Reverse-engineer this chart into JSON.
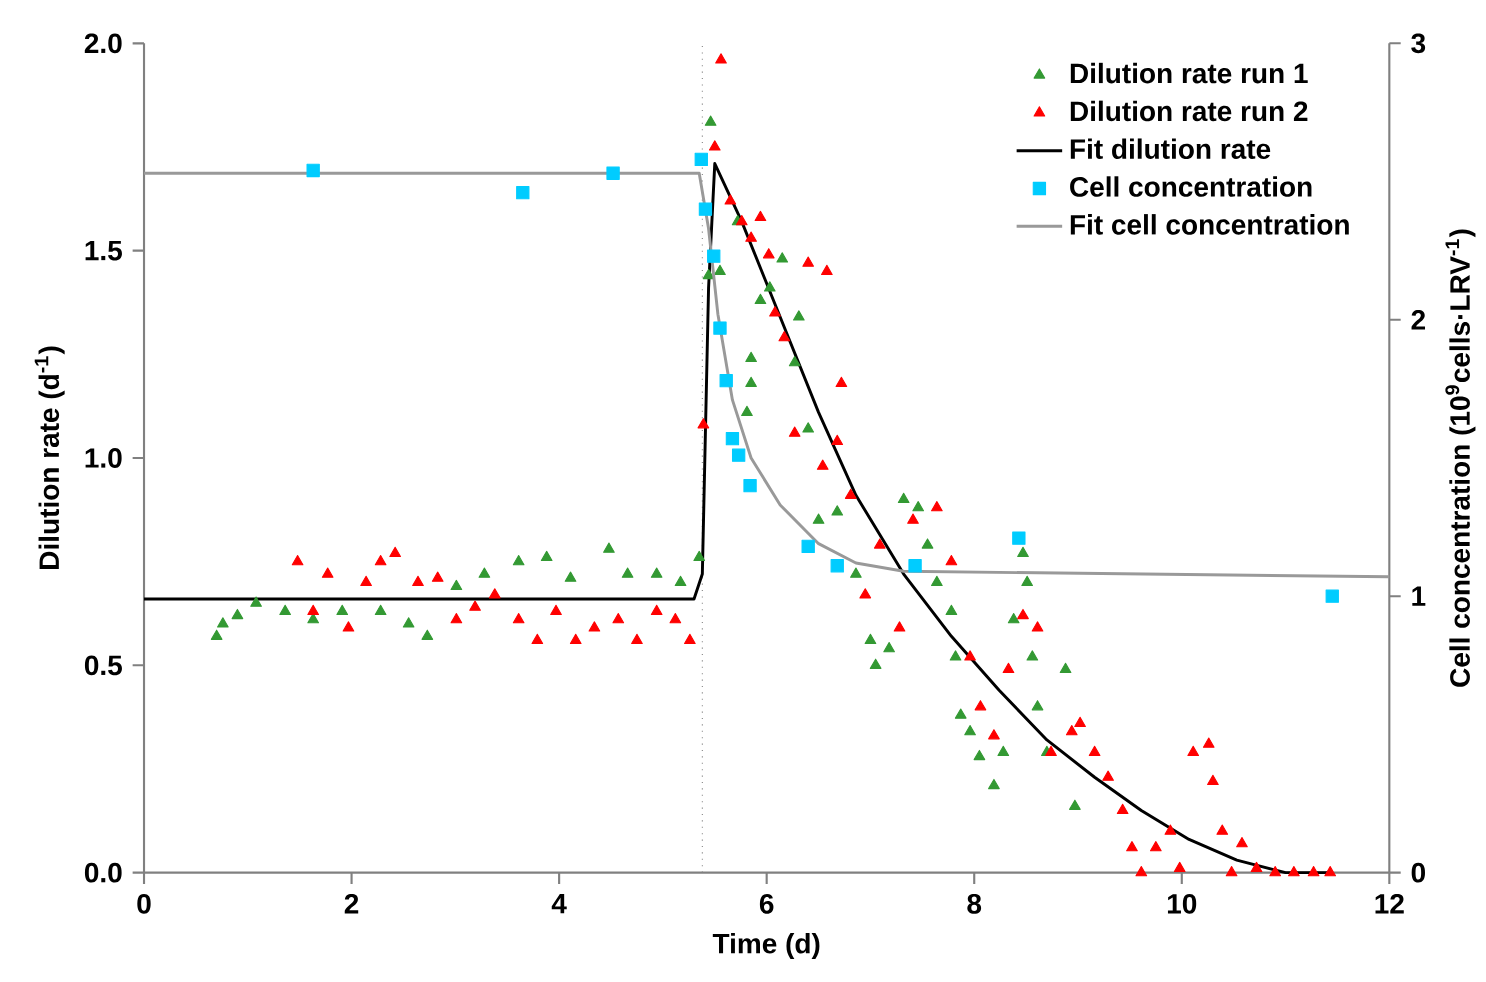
{
  "chart_data": {
    "type": "scatter",
    "xlabel": "Time (d)",
    "ylabel": "Dilution rate (d$^{-1}$)",
    "y2label": "Cell concentration (10$^{9}$cells·LRV$^{-1}$)",
    "xlim": [
      0,
      12
    ],
    "xticks": [
      0,
      2,
      4,
      6,
      8,
      10,
      12
    ],
    "ylim": [
      0,
      2.0
    ],
    "yticks": [
      {
        "value": 0,
        "label": "0.0"
      },
      {
        "value": 0.5,
        "label": "0.5"
      },
      {
        "value": 1.0,
        "label": "1.0"
      },
      {
        "value": 1.5,
        "label": "1.5"
      },
      {
        "value": 2.0,
        "label": "2.0"
      }
    ],
    "y2lim": [
      0,
      3
    ],
    "y2ticks": [
      0,
      1,
      2,
      3
    ],
    "legend": "top right",
    "grid": false,
    "ref_lines": [
      {
        "axis": "x",
        "value": 5.38,
        "label": null,
        "color": "#808080",
        "line_style": "dotted"
      }
    ],
    "series": [
      {
        "name": "Dilution rate run 1",
        "marker": "triangle",
        "color": "#339933",
        "x": [
          0.7,
          0.76,
          0.9,
          1.08,
          1.36,
          1.63,
          1.91,
          2.28,
          2.55,
          2.73,
          3.01,
          3.28,
          3.61,
          3.88,
          4.11,
          4.48,
          4.66,
          4.94,
          5.17,
          5.35,
          5.46,
          5.44,
          5.55,
          5.72,
          5.85,
          5.81,
          5.85,
          5.94,
          6.03,
          6.15,
          6.31,
          6.27,
          6.4,
          6.5,
          6.68,
          6.86,
          7.0,
          7.05,
          7.18,
          7.32,
          7.46,
          7.55,
          7.64,
          7.78,
          7.82,
          7.87,
          7.96,
          8.05,
          8.19,
          8.28,
          8.38,
          8.47,
          8.51,
          8.56,
          8.61,
          8.7,
          8.88,
          8.97
        ],
        "values": [
          0.57,
          0.6,
          0.62,
          0.65,
          0.63,
          0.61,
          0.63,
          0.63,
          0.6,
          0.57,
          0.69,
          0.72,
          0.75,
          0.76,
          0.71,
          0.78,
          0.72,
          0.72,
          0.7,
          0.76,
          1.81,
          1.44,
          1.45,
          1.57,
          1.18,
          1.11,
          1.24,
          1.38,
          1.41,
          1.48,
          1.34,
          1.23,
          1.07,
          0.85,
          0.87,
          0.72,
          0.56,
          0.5,
          0.54,
          0.9,
          0.88,
          0.79,
          0.7,
          0.63,
          0.52,
          0.38,
          0.34,
          0.28,
          0.21,
          0.29,
          0.61,
          0.77,
          0.7,
          0.52,
          0.4,
          0.29,
          0.49,
          0.16
        ]
      },
      {
        "name": "Dilution rate run 2",
        "marker": "triangle",
        "color": "#ff0000",
        "x": [
          1.48,
          1.63,
          1.77,
          1.97,
          2.14,
          2.28,
          2.42,
          2.64,
          2.83,
          3.01,
          3.19,
          3.38,
          3.61,
          3.79,
          3.97,
          4.16,
          4.34,
          4.57,
          4.75,
          4.94,
          5.12,
          5.26,
          5.39,
          5.5,
          5.56,
          5.65,
          5.76,
          5.85,
          5.94,
          6.02,
          6.08,
          6.17,
          6.27,
          6.4,
          6.58,
          6.54,
          6.68,
          6.72,
          6.81,
          6.95,
          7.09,
          7.28,
          7.41,
          7.64,
          7.78,
          7.96,
          8.06,
          8.19,
          8.33,
          8.47,
          8.61,
          8.74,
          8.94,
          9.02,
          9.16,
          9.29,
          9.43,
          9.52,
          9.61,
          9.75,
          9.89,
          9.98,
          10.11,
          10.26,
          10.3,
          10.39,
          10.48,
          10.58,
          10.72,
          10.9,
          11.08,
          11.27,
          11.43
        ],
        "values": [
          0.75,
          0.63,
          0.72,
          0.59,
          0.7,
          0.75,
          0.77,
          0.7,
          0.71,
          0.61,
          0.64,
          0.67,
          0.61,
          0.56,
          0.63,
          0.56,
          0.59,
          0.61,
          0.56,
          0.63,
          0.61,
          0.56,
          1.08,
          1.75,
          1.96,
          1.62,
          1.57,
          1.53,
          1.58,
          1.49,
          1.35,
          1.29,
          1.06,
          1.47,
          1.45,
          0.98,
          1.04,
          1.18,
          0.91,
          0.67,
          0.79,
          0.59,
          0.85,
          0.88,
          0.75,
          0.52,
          0.4,
          0.33,
          0.49,
          0.62,
          0.59,
          0.29,
          0.34,
          0.36,
          0.29,
          0.23,
          0.15,
          0.06,
          0.0,
          0.06,
          0.1,
          0.01,
          0.29,
          0.31,
          0.22,
          0.1,
          0.0,
          0.07,
          0.01,
          0.0,
          0.0,
          0.0,
          0.0
        ]
      },
      {
        "name": "Fit dilution rate",
        "type": "line",
        "marker": "none",
        "color": "#000000",
        "x": [
          0,
          5.3,
          5.38,
          5.44,
          5.5,
          5.76,
          6.13,
          6.5,
          6.86,
          7.32,
          7.78,
          8.24,
          8.7,
          9.16,
          9.61,
          10.07,
          10.53,
          11.0,
          11.45
        ],
        "values": [
          0.66,
          0.66,
          0.72,
          1.41,
          1.71,
          1.57,
          1.34,
          1.11,
          0.91,
          0.72,
          0.57,
          0.44,
          0.32,
          0.23,
          0.15,
          0.08,
          0.03,
          0.0,
          0.0
        ]
      },
      {
        "name": "Cell concentration",
        "marker": "square",
        "axis": "y2",
        "color": "#00ccff",
        "x": [
          1.63,
          3.65,
          4.52,
          5.37,
          5.41,
          5.49,
          5.55,
          5.61,
          5.67,
          5.73,
          5.84,
          6.4,
          6.68,
          7.43,
          8.43,
          11.45
        ],
        "values": [
          2.54,
          2.46,
          2.53,
          2.58,
          2.4,
          2.23,
          1.97,
          1.78,
          1.57,
          1.51,
          1.4,
          1.18,
          1.11,
          1.11,
          1.21,
          1.0
        ]
      },
      {
        "name": "Fit cell concentration",
        "type": "line",
        "marker": "none",
        "axis": "y2",
        "color": "#999999",
        "x": [
          0,
          5.35,
          5.44,
          5.53,
          5.67,
          5.85,
          6.13,
          6.5,
          6.86,
          7.32,
          12.0
        ],
        "values": [
          2.53,
          2.53,
          2.33,
          2.02,
          1.71,
          1.5,
          1.33,
          1.19,
          1.12,
          1.09,
          1.07
        ]
      }
    ]
  }
}
